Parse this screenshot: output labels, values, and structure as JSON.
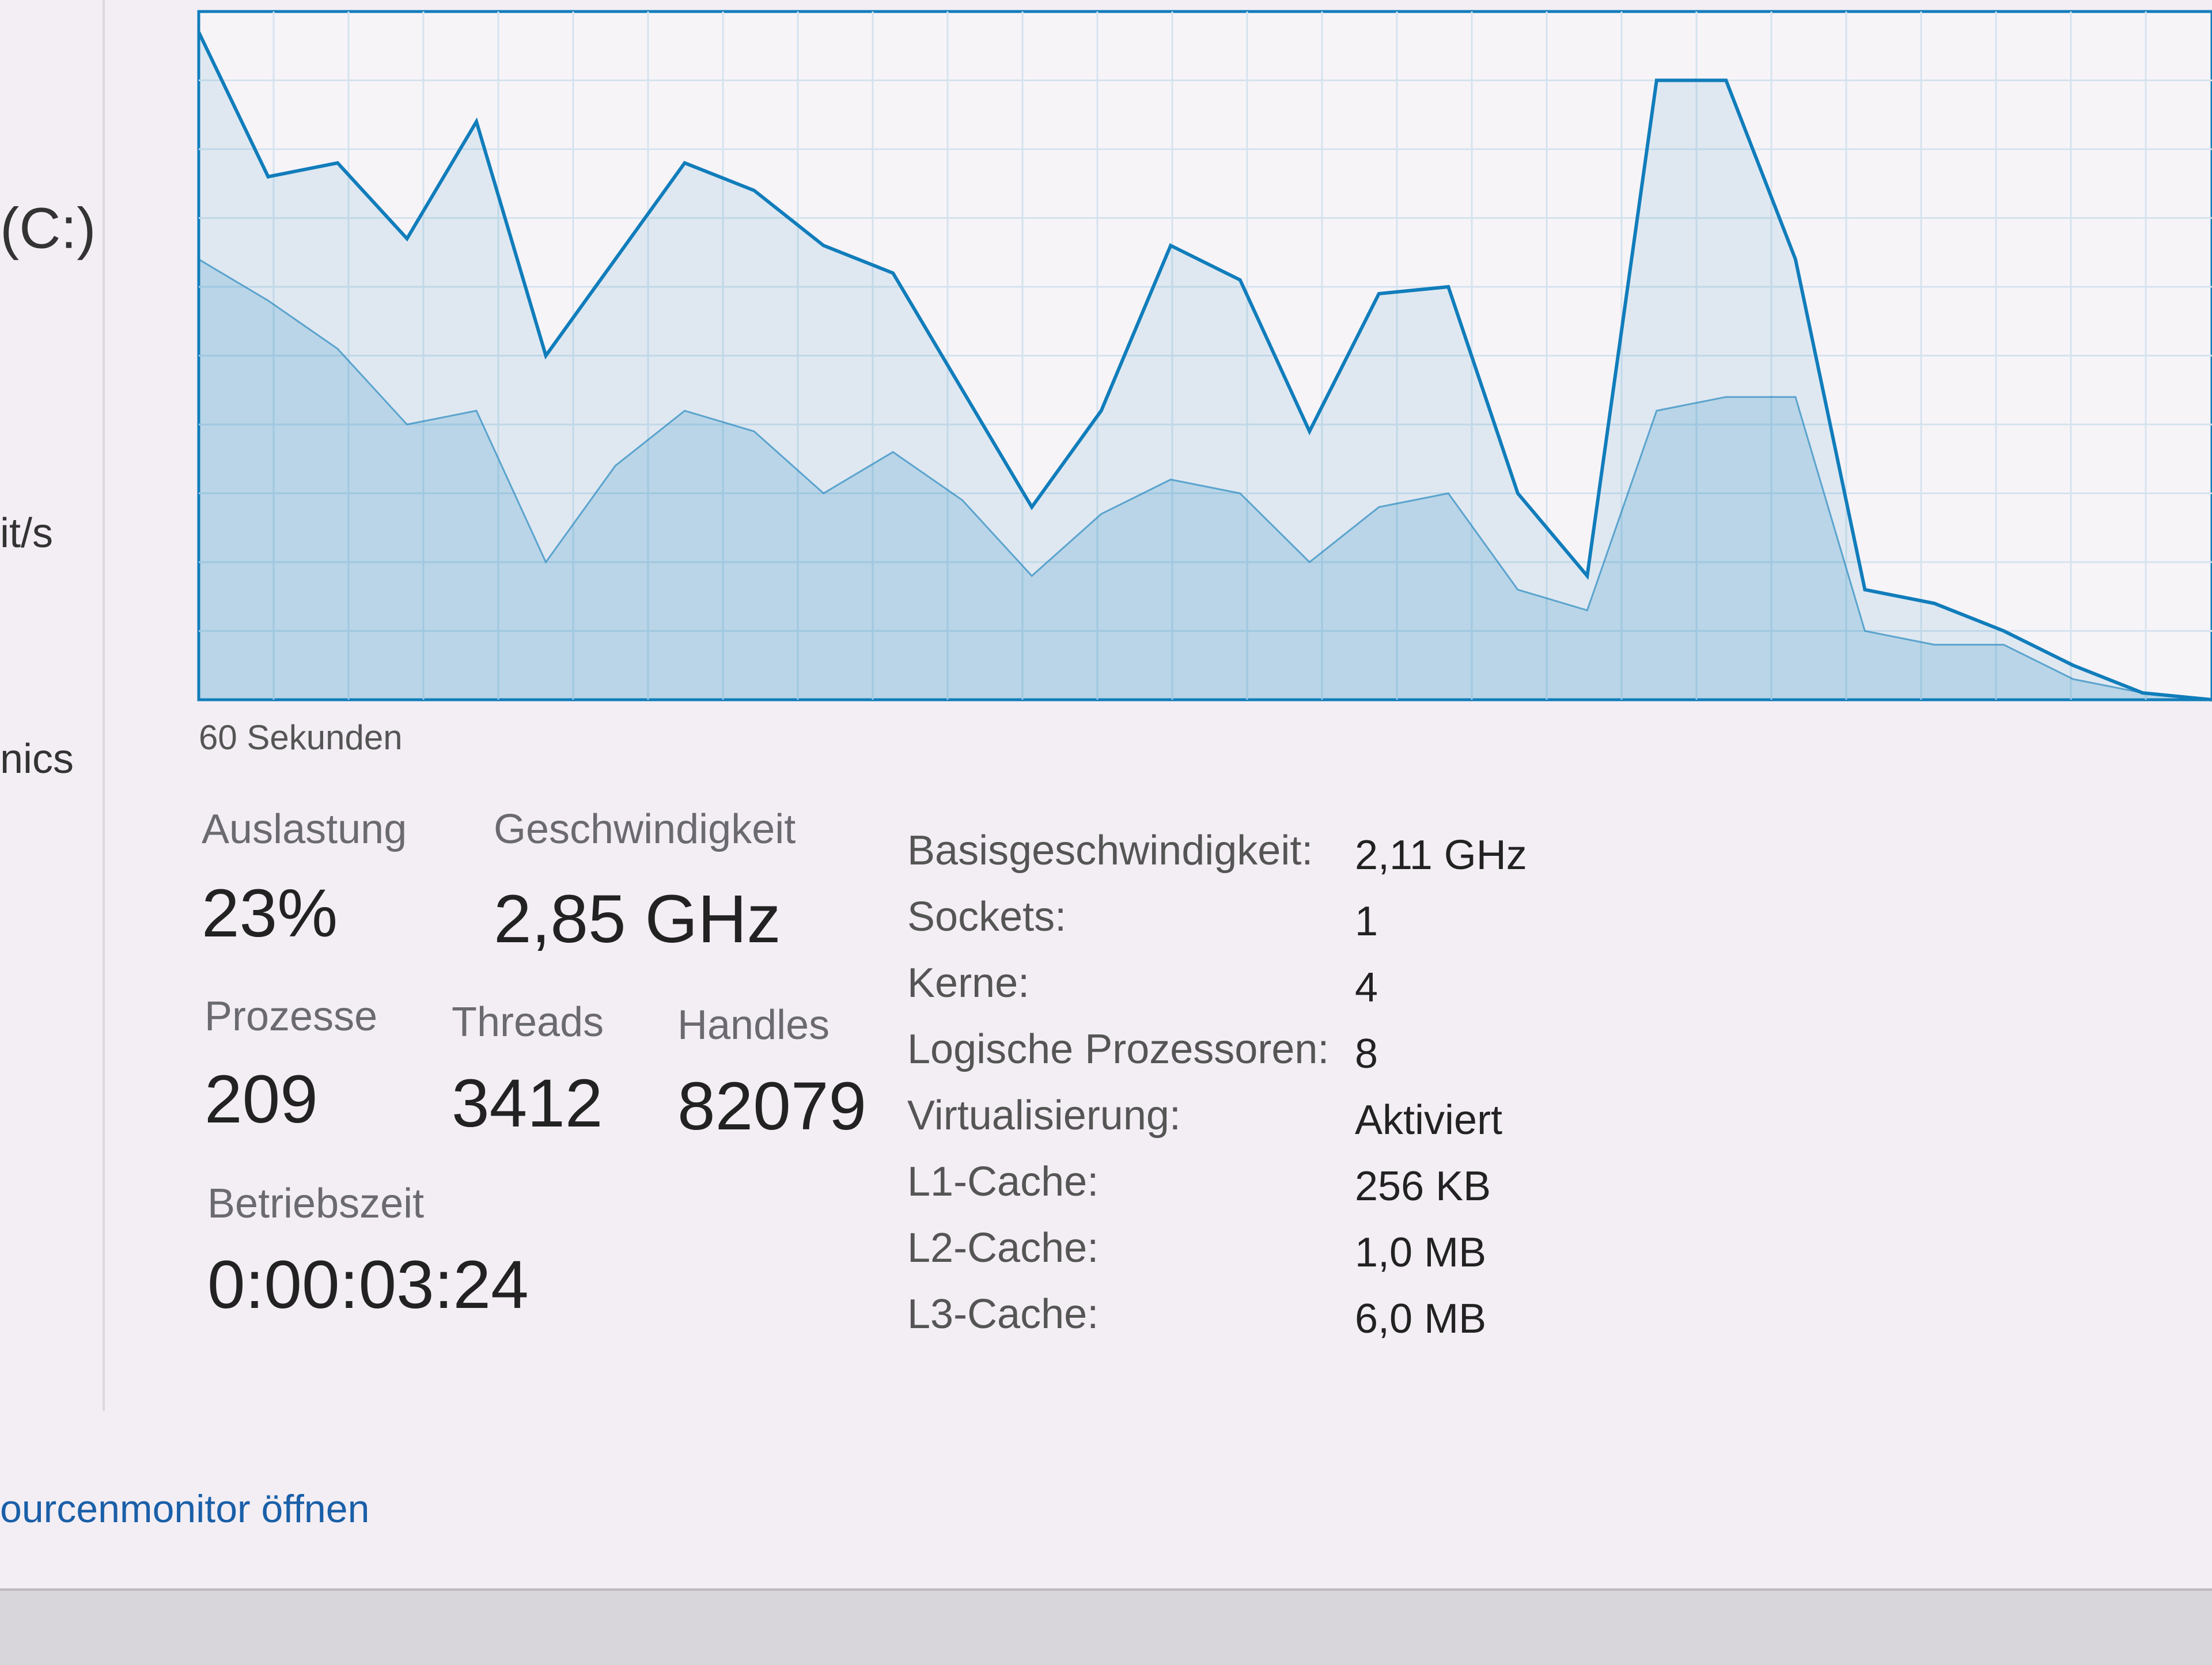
{
  "sidebar": [
    "(C:)",
    "it/s",
    "nics"
  ],
  "chart_data": {
    "type": "line",
    "x_label": "60 Sekunden",
    "ylim": [
      0,
      100
    ],
    "series": [
      {
        "color": "#117dbb",
        "values": [
          97,
          76,
          78,
          67,
          84,
          50,
          64,
          78,
          74,
          66,
          62,
          45,
          28,
          42,
          66,
          61,
          39,
          59,
          60,
          30,
          18,
          90,
          90,
          64,
          16,
          14,
          10,
          5,
          1,
          0
        ]
      },
      {
        "color": "#117dbb",
        "values": [
          64,
          58,
          51,
          40,
          42,
          20,
          34,
          42,
          39,
          30,
          36,
          29,
          18,
          27,
          32,
          30,
          20,
          28,
          30,
          16,
          13,
          42,
          44,
          44,
          10,
          8,
          8,
          3,
          1,
          0
        ]
      }
    ]
  },
  "stats": [
    {
      "label": "Auslastung",
      "value": "23%"
    },
    {
      "label": "Geschwindigkeit",
      "value": "2,85 GHz"
    },
    {
      "label": "Prozesse",
      "value": "209"
    },
    {
      "label": "Threads",
      "value": "3412"
    },
    {
      "label": "Handles",
      "value": "82079"
    },
    {
      "label": "Betriebszeit",
      "value": "0:00:03:24"
    }
  ],
  "details": [
    [
      "Basisgeschwindigkeit:",
      "2,11 GHz"
    ],
    [
      "Sockets:",
      "1"
    ],
    [
      "Kerne:",
      "4"
    ],
    [
      "Logische Prozessoren:",
      "8"
    ],
    [
      "Virtualisierung:",
      "Aktiviert"
    ],
    [
      "L1-Cache:",
      "256 KB"
    ],
    [
      "L2-Cache:",
      "1,0 MB"
    ],
    [
      "L3-Cache:",
      "6,0 MB"
    ]
  ],
  "footer_link": "ourcenmonitor öffnen"
}
